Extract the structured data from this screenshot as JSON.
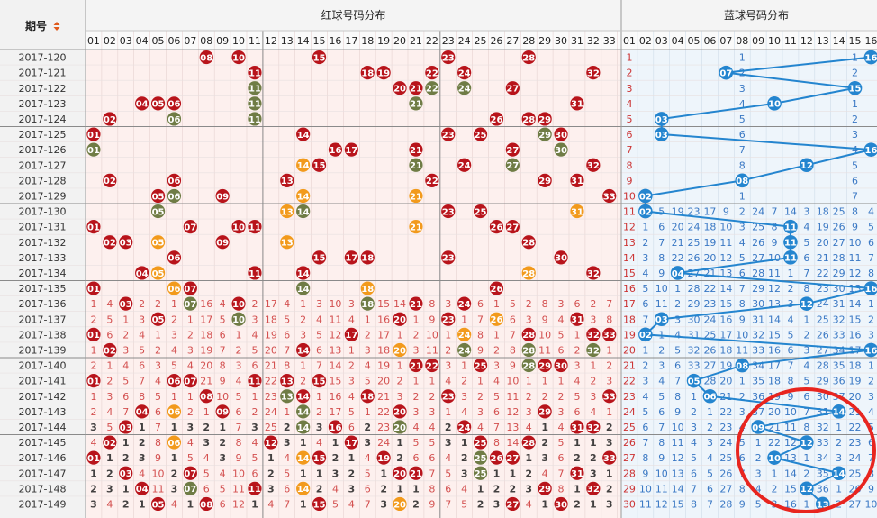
{
  "header": {
    "period_label": "期号",
    "red_title": "红球号码分布",
    "blue_title": "蓝球号码分布"
  },
  "colors": {
    "red": "#b8141b",
    "olive": "#6f7c45",
    "orange": "#f29a1c",
    "blue": "#2485cf",
    "miss_red": "#cc3333",
    "miss_blue": "#3a78c4",
    "miss_dark": "#222222"
  },
  "chart_data": {
    "type": "table",
    "red_columns": [
      "01",
      "02",
      "03",
      "04",
      "05",
      "06",
      "07",
      "08",
      "09",
      "10",
      "11",
      "12",
      "13",
      "14",
      "15",
      "16",
      "17",
      "18",
      "19",
      "20",
      "21",
      "22",
      "23",
      "24",
      "25",
      "26",
      "27",
      "28",
      "29",
      "30",
      "31",
      "32",
      "33"
    ],
    "blue_columns": [
      "01",
      "02",
      "03",
      "04",
      "05",
      "06",
      "07",
      "08",
      "09",
      "10",
      "11",
      "12",
      "13",
      "14",
      "15",
      "16"
    ],
    "periods": [
      {
        "id": "2017-120",
        "red": [
          8,
          10,
          15,
          28,
          23
        ],
        "blue": 16
      },
      {
        "id": "2017-121",
        "red": [
          11,
          18,
          19,
          22,
          24,
          32
        ],
        "blue": 7
      },
      {
        "id": "2017-122",
        "red": [
          11,
          20,
          21,
          22,
          24,
          27
        ],
        "blue": 15
      },
      {
        "id": "2017-123",
        "red": [
          4,
          5,
          6,
          11,
          21,
          31
        ],
        "blue": 10
      },
      {
        "id": "2017-124",
        "red": [
          2,
          6,
          11,
          26,
          28,
          29
        ],
        "blue": 3
      },
      {
        "id": "2017-125",
        "red": [
          1,
          14,
          23,
          25,
          29,
          30
        ],
        "blue": 3
      },
      {
        "id": "2017-126",
        "red": [
          1,
          16,
          17,
          21,
          27,
          30
        ],
        "blue": 16
      },
      {
        "id": "2017-127",
        "red": [
          14,
          15,
          21,
          24,
          27,
          32
        ],
        "blue": 12
      },
      {
        "id": "2017-128",
        "red": [
          2,
          6,
          13,
          22,
          29,
          31
        ],
        "blue": 8
      },
      {
        "id": "2017-129",
        "red": [
          5,
          6,
          9,
          14,
          21,
          33
        ],
        "blue": 2
      },
      {
        "id": "2017-130",
        "red": [
          5,
          13,
          14,
          23,
          25,
          31
        ],
        "blue": 2
      },
      {
        "id": "2017-131",
        "red": [
          1,
          7,
          10,
          11,
          21,
          26,
          27
        ],
        "blue": 11
      },
      {
        "id": "2017-132",
        "red": [
          2,
          3,
          5,
          9,
          13,
          28
        ],
        "blue": 11
      },
      {
        "id": "2017-133",
        "red": [
          6,
          15,
          17,
          18,
          23,
          30
        ],
        "blue": 11
      },
      {
        "id": "2017-134",
        "red": [
          4,
          5,
          11,
          14,
          28,
          32
        ],
        "blue": 4
      },
      {
        "id": "2017-135",
        "red": [
          1,
          6,
          7,
          14,
          18,
          26
        ],
        "blue": 16
      },
      {
        "id": "2017-136",
        "red": [
          3,
          7,
          10,
          18,
          21,
          24
        ],
        "blue": 12
      },
      {
        "id": "2017-137",
        "red": [
          5,
          10,
          20,
          23,
          26,
          31
        ],
        "blue": 3
      },
      {
        "id": "2017-138",
        "red": [
          1,
          17,
          24,
          28,
          32,
          33
        ],
        "blue": 2
      },
      {
        "id": "2017-139",
        "red": [
          2,
          14,
          20,
          24,
          28,
          32
        ],
        "blue": 16
      },
      {
        "id": "2017-140",
        "red": [
          21,
          22,
          25,
          28,
          29,
          30
        ],
        "blue": 8
      },
      {
        "id": "2017-141",
        "red": [
          1,
          6,
          7,
          11,
          13,
          15
        ],
        "blue": 5
      },
      {
        "id": "2017-142",
        "red": [
          8,
          13,
          14,
          18,
          23,
          33
        ],
        "blue": 6
      },
      {
        "id": "2017-143",
        "red": [
          4,
          6,
          9,
          14,
          20,
          29
        ],
        "blue": 14
      },
      {
        "id": "2017-144",
        "red": [
          3,
          14,
          16,
          20,
          24,
          31,
          32
        ],
        "blue": 9
      },
      {
        "id": "2017-145",
        "red": [
          2,
          6,
          12,
          17,
          25,
          28
        ],
        "blue": 12
      },
      {
        "id": "2017-146",
        "red": [
          1,
          14,
          15,
          19,
          25,
          26,
          27,
          33
        ],
        "blue": 10
      },
      {
        "id": "2017-147",
        "red": [
          3,
          7,
          20,
          21,
          25,
          31
        ],
        "blue": 14
      },
      {
        "id": "2017-148",
        "red": [
          4,
          7,
          11,
          14,
          29,
          32
        ],
        "blue": 12
      },
      {
        "id": "2017-149",
        "red": [
          5,
          8,
          15,
          20,
          27,
          30
        ],
        "blue": 13
      }
    ]
  }
}
